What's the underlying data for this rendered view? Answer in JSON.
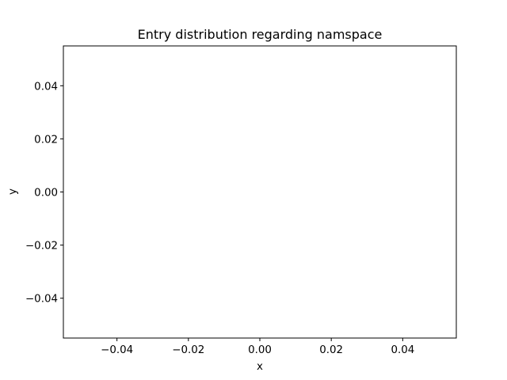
{
  "chart_data": {
    "type": "scatter",
    "title": "Entry distribution regarding namspace",
    "xlabel": "x",
    "ylabel": "y",
    "xlim": [
      -0.055,
      0.055
    ],
    "ylim": [
      -0.055,
      0.055
    ],
    "x_ticks": [
      -0.04,
      -0.02,
      0.0,
      0.02,
      0.04
    ],
    "x_tick_labels": [
      "−0.04",
      "−0.02",
      "0.00",
      "0.02",
      "0.04"
    ],
    "y_ticks": [
      -0.04,
      -0.02,
      0.0,
      0.02,
      0.04
    ],
    "y_tick_labels": [
      "−0.04",
      "−0.02",
      "0.00",
      "0.02",
      "0.04"
    ],
    "grid": false,
    "series": [
      {
        "x": [],
        "y": []
      }
    ]
  }
}
